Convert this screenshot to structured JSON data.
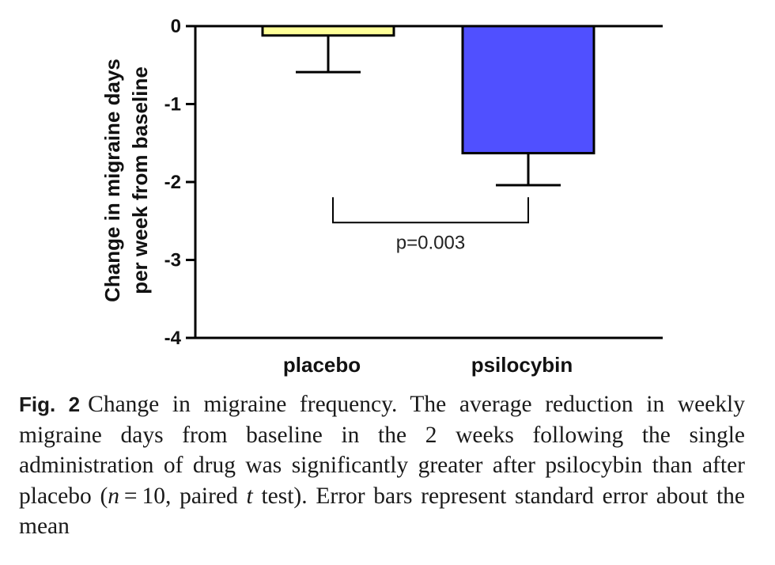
{
  "chart_data": {
    "type": "bar",
    "categories": [
      "placebo",
      "psilocybin"
    ],
    "values": [
      -0.12,
      -1.63
    ],
    "error_bars": [
      0.47,
      0.41
    ],
    "bar_colors": [
      "#ffff99",
      "#5050ff"
    ],
    "ylabel_line1": "Change in migraine days",
    "ylabel_line2": "per week from baseline",
    "ylim": [
      -4,
      0
    ],
    "yticks": [
      0,
      -1,
      -2,
      -3,
      -4
    ],
    "ytick_labels": [
      "0",
      "-1",
      "-2",
      "-3",
      "-4"
    ],
    "annotation": {
      "text": "p=0.003",
      "bracket_between": [
        "placebo",
        "psilocybin"
      ],
      "bracket_y": -2.5
    }
  },
  "caption": {
    "label": "Fig. 2",
    "part1": "Change in migraine frequency. The average reduction in weekly migraine days from baseline in the 2 weeks following the single administration of drug was significantly greater after psilocybin than after placebo (",
    "n_symbol": "n",
    "n_value": " = 10, paired ",
    "t_symbol": "t",
    "part2": " test). Error bars represent standard error about the mean"
  }
}
